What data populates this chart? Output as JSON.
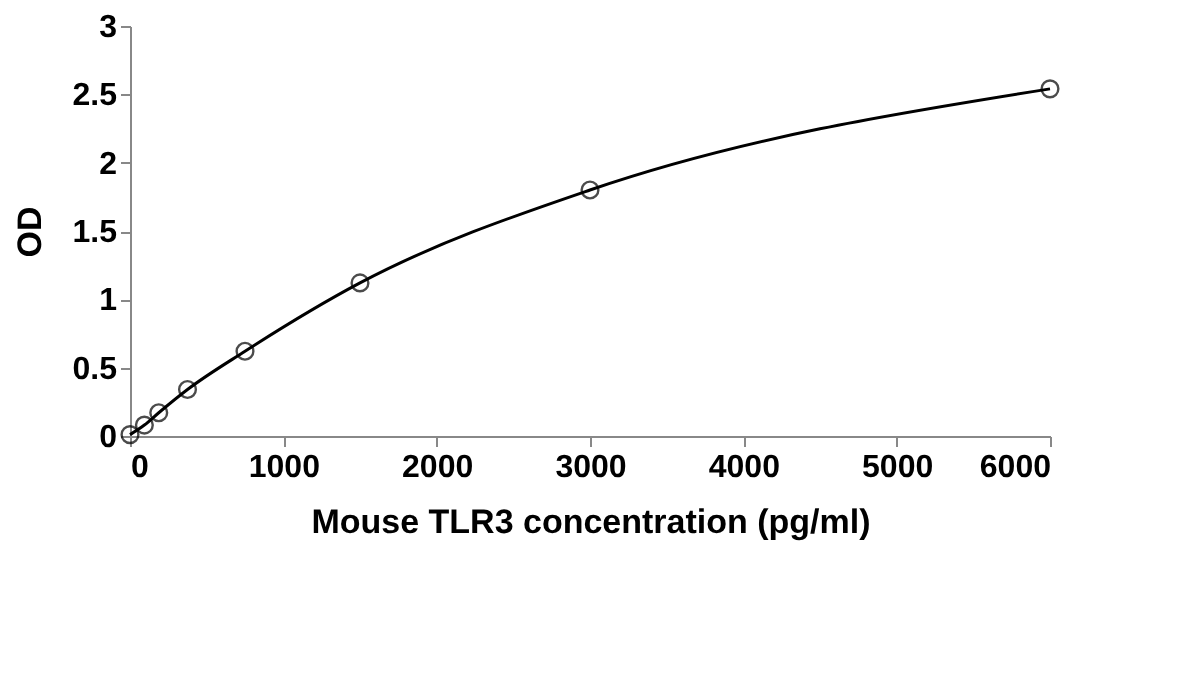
{
  "chart_data": {
    "type": "scatter",
    "xlabel": "Mouse TLR3 concentration (pg/ml)",
    "ylabel": "OD",
    "xlim": [
      0,
      6000
    ],
    "xticks": [
      0,
      1000,
      2000,
      3000,
      4000,
      5000,
      6000
    ],
    "ylim": [
      0,
      3
    ],
    "yticks": [
      0,
      0.5,
      1,
      1.5,
      2,
      2.5,
      3
    ],
    "grid": false,
    "marker": "circle",
    "series": [
      {
        "type": "line",
        "color": "#000000",
        "line_style": "solid",
        "marker": "none",
        "x": [
          0,
          93.75,
          187.5,
          375,
          750,
          1500,
          3000,
          6000
        ],
        "values": [
          0.01,
          0.08,
          0.17,
          0.34,
          0.62,
          1.12,
          1.8,
          2.54
        ]
      },
      {
        "color": "#000000",
        "x": [
          0,
          93.75,
          187.5,
          375,
          750,
          1500,
          3000,
          6000
        ],
        "values": [
          0.01,
          0.08,
          0.17,
          0.34,
          0.62,
          1.12,
          1.8,
          2.54
        ]
      }
    ]
  }
}
